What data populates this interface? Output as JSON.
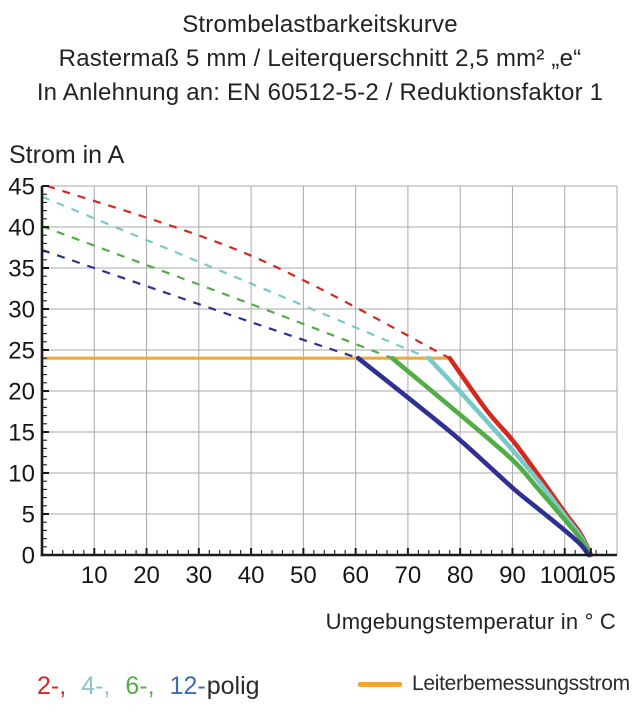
{
  "title": {
    "line1": "Strombelastbarkeitskurve",
    "line2": "Rastermaß 5 mm / Leiterquerschnitt 2,5 mm² „e“",
    "line3": "In Anlehnung an: EN 60512-5-2 / Reduktionsfaktor 1"
  },
  "chart_data": {
    "type": "line",
    "title": "Strombelastbarkeitskurve",
    "ylabel": "Strom in A",
    "xlabel": "Umgebungstemperatur in ° C",
    "xlim": [
      0,
      110
    ],
    "ylim": [
      0,
      45
    ],
    "x_ticks": [
      10,
      20,
      30,
      40,
      50,
      60,
      70,
      80,
      90,
      100,
      105
    ],
    "y_ticks": [
      0,
      5,
      10,
      15,
      20,
      25,
      30,
      35,
      40,
      45
    ],
    "x_minor_step": 2,
    "y_minor_step": 1,
    "grid": {
      "x_step": 10,
      "y_step": 5,
      "color": "#a9a9a9"
    },
    "axis_color": "#1b1b1b",
    "series": [
      {
        "name": "2-polig",
        "color": "#d42a1d",
        "dashed_points": [
          [
            1,
            45
          ],
          [
            40,
            36.5
          ],
          [
            78,
            24
          ]
        ],
        "solid_points": [
          [
            78,
            24
          ],
          [
            85,
            17.7
          ],
          [
            90,
            14
          ],
          [
            95,
            9.7
          ],
          [
            100,
            5.2
          ],
          [
            103,
            2.6
          ],
          [
            105,
            0
          ]
        ]
      },
      {
        "name": "4-polig",
        "color": "#79c9c8",
        "dashed_points": [
          [
            0,
            43.7
          ],
          [
            40,
            33.1
          ],
          [
            74,
            24
          ]
        ],
        "solid_points": [
          [
            74,
            24
          ],
          [
            80,
            19.9
          ],
          [
            90,
            12.8
          ],
          [
            95,
            9.0
          ],
          [
            100,
            4.8
          ],
          [
            103,
            2.3
          ],
          [
            104.9,
            0
          ]
        ]
      },
      {
        "name": "6-polig",
        "color": "#53ad47",
        "dashed_points": [
          [
            0,
            40.1
          ],
          [
            40,
            30.6
          ],
          [
            67,
            24
          ]
        ],
        "solid_points": [
          [
            67,
            24
          ],
          [
            80,
            17.1
          ],
          [
            90,
            11.6
          ],
          [
            95,
            8.0
          ],
          [
            100,
            4.3
          ],
          [
            103,
            2.0
          ],
          [
            104.8,
            0
          ]
        ]
      },
      {
        "name": "12-polig",
        "color": "#2e3192",
        "dashed_points": [
          [
            0,
            37.2
          ],
          [
            40,
            28.4
          ],
          [
            60.5,
            24
          ]
        ],
        "solid_points": [
          [
            60.5,
            24
          ],
          [
            70,
            19.2
          ],
          [
            80,
            14.0
          ],
          [
            90,
            8.2
          ],
          [
            95,
            5.6
          ],
          [
            100,
            3.0
          ],
          [
            103,
            1.3
          ],
          [
            104.6,
            0
          ]
        ]
      }
    ],
    "rated_current": {
      "label": "Leiterbemessungsstrom",
      "value": 24,
      "x_range": [
        0,
        78
      ],
      "color": "#f5a733"
    }
  },
  "legend": {
    "pole_items": [
      {
        "label": "2-,",
        "color": "#d42a1d"
      },
      {
        "label": "4-,",
        "color": "#85c4cf"
      },
      {
        "label": "6-,",
        "color": "#53ad47"
      },
      {
        "label": "12-",
        "color": "#3e6cb0"
      }
    ],
    "pole_suffix": "polig",
    "rated_label": "Leiterbemessungsstrom",
    "rated_color": "#f5a733"
  }
}
